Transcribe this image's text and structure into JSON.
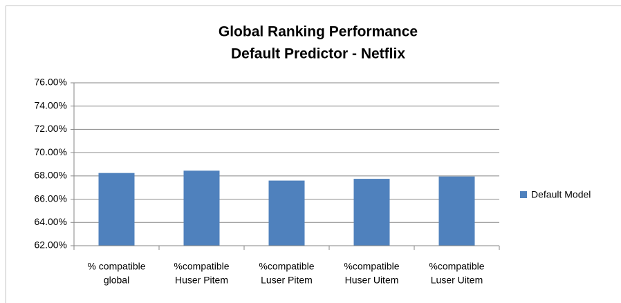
{
  "chart_data": {
    "type": "bar",
    "title": [
      "Global Ranking Performance",
      "Default Predictor - Netflix"
    ],
    "categories": [
      [
        "% compatible",
        "global"
      ],
      [
        "%compatible",
        "Huser Pitem"
      ],
      [
        "%compatible",
        "Luser Pitem"
      ],
      [
        "%compatible",
        "Huser Uitem"
      ],
      [
        "%compatible",
        "Luser Uitem"
      ]
    ],
    "series": [
      {
        "name": "Default Model",
        "color": "#4f81bd",
        "values": [
          68.25,
          68.45,
          67.6,
          67.75,
          67.95
        ]
      }
    ],
    "ylim": [
      62,
      76
    ],
    "yticks": [
      {
        "value": 62,
        "label": "62.00%"
      },
      {
        "value": 64,
        "label": "64.00%"
      },
      {
        "value": 66,
        "label": "66.00%"
      },
      {
        "value": 68,
        "label": "68.00%"
      },
      {
        "value": 70,
        "label": "70.00%"
      },
      {
        "value": 72,
        "label": "72.00%"
      },
      {
        "value": 74,
        "label": "74.00%"
      },
      {
        "value": 76,
        "label": "76.00%"
      }
    ],
    "grid": true,
    "legend": "right"
  }
}
